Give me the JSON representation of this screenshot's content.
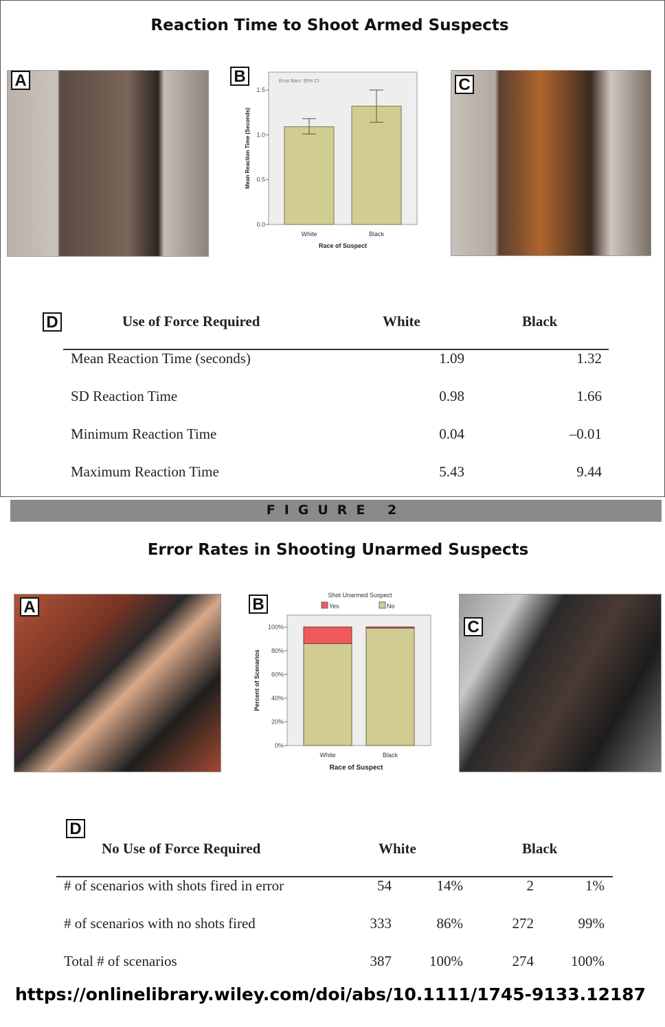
{
  "figure1": {
    "title": "Reaction Time to Shoot Armed Suspects",
    "panel_labels": [
      "A",
      "B",
      "C",
      "D"
    ],
    "table": {
      "header": [
        "Use of Force Required",
        "White",
        "Black"
      ],
      "rows": [
        {
          "label": "Mean Reaction Time (seconds)",
          "white": "1.09",
          "black": "1.32"
        },
        {
          "label": "SD Reaction Time",
          "white": "0.98",
          "black": "1.66"
        },
        {
          "label": "Minimum Reaction Time",
          "white": "0.04",
          "black": "–0.01"
        },
        {
          "label": "Maximum Reaction Time",
          "white": "5.43",
          "black": "9.44"
        }
      ]
    }
  },
  "figure_banner": "FIGURE 2",
  "figure2": {
    "title": "Error Rates in Shooting Unarmed Suspects",
    "panel_labels": [
      "A",
      "B",
      "C",
      "D"
    ],
    "table": {
      "header": [
        "No Use of Force Required",
        "White",
        "Black"
      ],
      "rows": [
        {
          "label": "# of scenarios with shots fired in error",
          "w_n": "54",
          "w_p": "14%",
          "b_n": "2",
          "b_p": "1%"
        },
        {
          "label": "# of scenarios with no shots fired",
          "w_n": "333",
          "w_p": "86%",
          "b_n": "272",
          "b_p": "99%"
        },
        {
          "label": "Total # of scenarios",
          "w_n": "387",
          "w_p": "100%",
          "b_n": "274",
          "b_p": "100%"
        }
      ]
    }
  },
  "url": "https://onlinelibrary.wiley.com/doi/abs/10.1111/1745-9133.12187",
  "chart_data": [
    {
      "type": "bar",
      "categories": [
        "White",
        "Black"
      ],
      "values": [
        1.09,
        1.32
      ],
      "error_bars": [
        [
          1.01,
          1.18
        ],
        [
          1.14,
          1.5
        ]
      ],
      "annotation": "Error Bars: 95% CI",
      "xlabel": "Race of Suspect",
      "ylabel": "Mean Reaction Time (Seconds)",
      "ylim": [
        0,
        1.7
      ],
      "yticks": [
        "0.0",
        "0.5",
        "1.0",
        "1.5"
      ],
      "grid": false,
      "colors": {
        "bar": "#d1cd92",
        "background": "#eeeeee"
      }
    },
    {
      "type": "bar",
      "stacked": true,
      "categories": [
        "White",
        "Black"
      ],
      "legend_title": "Shot Unarmed Suspect",
      "legend_position": "top",
      "series": [
        {
          "name": "Yes",
          "values": [
            14,
            1
          ],
          "color": "#f05a5a"
        },
        {
          "name": "No",
          "values": [
            86,
            99
          ],
          "color": "#d1cd92"
        }
      ],
      "xlabel": "Race of Suspect",
      "ylabel": "Percent of Scenarios",
      "ylim": [
        0,
        110
      ],
      "yticks": [
        "0%",
        "20%",
        "40%",
        "60%",
        "80%",
        "100%"
      ],
      "grid": false
    }
  ]
}
